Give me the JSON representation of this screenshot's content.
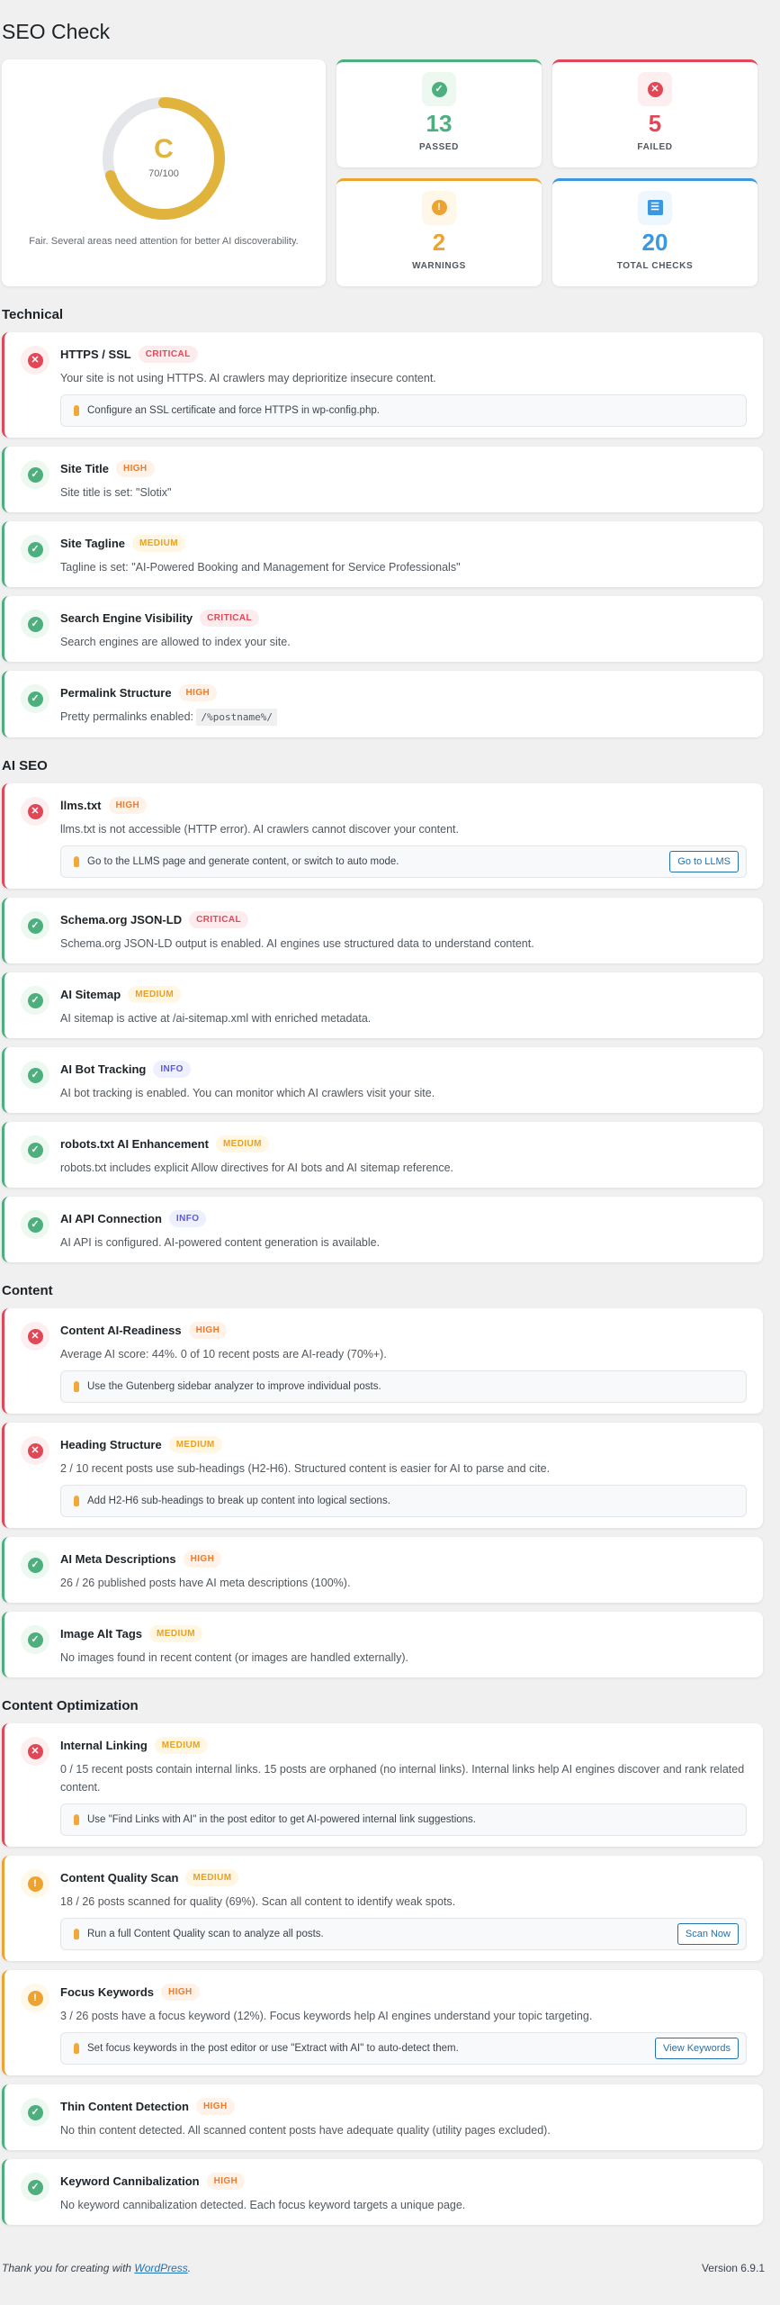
{
  "page_title": "SEO Check",
  "score": {
    "grade": "C",
    "score_text": "70/100",
    "value": 70,
    "max": 100,
    "message": "Fair. Several areas need attention for better AI discoverability.",
    "color": "#e0b43c"
  },
  "stats": [
    {
      "icon": "check-circle-icon",
      "value": "13",
      "label": "PASSED",
      "color": "#4caf7d",
      "bg": "#edf8f1"
    },
    {
      "icon": "x-circle-icon",
      "value": "5",
      "label": "FAILED",
      "color": "#e04857",
      "bg": "#fdeef0"
    },
    {
      "icon": "exclamation-circle-icon",
      "value": "2",
      "label": "WARNINGS",
      "color": "#eca331",
      "bg": "#fff8e8"
    },
    {
      "icon": "list-icon",
      "value": "20",
      "label": "TOTAL CHECKS",
      "color": "#3c97e0",
      "bg": "#eef6fe"
    }
  ],
  "sections": [
    {
      "title": "Technical",
      "checks": [
        {
          "status": "fail",
          "title": "HTTPS / SSL",
          "severity": "CRITICAL",
          "desc": "Your site is not using HTTPS. AI crawlers may deprioritize insecure content.",
          "hint": "Configure an SSL certificate and force HTTPS in wp-config.php."
        },
        {
          "status": "pass",
          "title": "Site Title",
          "severity": "HIGH",
          "desc": "Site title is set: \"Slotix\""
        },
        {
          "status": "pass",
          "title": "Site Tagline",
          "severity": "MEDIUM",
          "desc": "Tagline is set: \"AI-Powered Booking and Management for Service Professionals\""
        },
        {
          "status": "pass",
          "title": "Search Engine Visibility",
          "severity": "CRITICAL",
          "desc": "Search engines are allowed to index your site."
        },
        {
          "status": "pass",
          "title": "Permalink Structure",
          "severity": "HIGH",
          "desc": "Pretty permalinks enabled:",
          "code": "/%postname%/"
        }
      ]
    },
    {
      "title": "AI SEO",
      "checks": [
        {
          "status": "fail",
          "title": "llms.txt",
          "severity": "HIGH",
          "desc": "llms.txt is not accessible (HTTP error). AI crawlers cannot discover your content.",
          "hint": "Go to the LLMS page and generate content, or switch to auto mode.",
          "button": "Go to LLMS"
        },
        {
          "status": "pass",
          "title": "Schema.org JSON-LD",
          "severity": "CRITICAL",
          "desc": "Schema.org JSON-LD output is enabled. AI engines use structured data to understand content."
        },
        {
          "status": "pass",
          "title": "AI Sitemap",
          "severity": "MEDIUM",
          "desc": "AI sitemap is active at /ai-sitemap.xml with enriched metadata."
        },
        {
          "status": "pass",
          "title": "AI Bot Tracking",
          "severity": "INFO",
          "desc": "AI bot tracking is enabled. You can monitor which AI crawlers visit your site."
        },
        {
          "status": "pass",
          "title": "robots.txt AI Enhancement",
          "severity": "MEDIUM",
          "desc": "robots.txt includes explicit Allow directives for AI bots and AI sitemap reference."
        },
        {
          "status": "pass",
          "title": "AI API Connection",
          "severity": "INFO",
          "desc": "AI API is configured. AI-powered content generation is available."
        }
      ]
    },
    {
      "title": "Content",
      "checks": [
        {
          "status": "fail",
          "title": "Content AI-Readiness",
          "severity": "HIGH",
          "desc": "Average AI score: 44%. 0 of 10 recent posts are AI-ready (70%+).",
          "hint": "Use the Gutenberg sidebar analyzer to improve individual posts."
        },
        {
          "status": "fail",
          "title": "Heading Structure",
          "severity": "MEDIUM",
          "desc": "2 / 10 recent posts use sub-headings (H2-H6). Structured content is easier for AI to parse and cite.",
          "hint": "Add H2-H6 sub-headings to break up content into logical sections."
        },
        {
          "status": "pass",
          "title": "AI Meta Descriptions",
          "severity": "HIGH",
          "desc": "26 / 26 published posts have AI meta descriptions (100%)."
        },
        {
          "status": "pass",
          "title": "Image Alt Tags",
          "severity": "MEDIUM",
          "desc": "No images found in recent content (or images are handled externally)."
        }
      ]
    },
    {
      "title": "Content Optimization",
      "checks": [
        {
          "status": "fail",
          "title": "Internal Linking",
          "severity": "MEDIUM",
          "desc": "0 / 15 recent posts contain internal links. 15 posts are orphaned (no internal links). Internal links help AI engines discover and rank related content.",
          "hint": "Use \"Find Links with AI\" in the post editor to get AI-powered internal link suggestions."
        },
        {
          "status": "warn",
          "title": "Content Quality Scan",
          "severity": "MEDIUM",
          "desc": "18 / 26 posts scanned for quality (69%). Scan all content to identify weak spots.",
          "hint": "Run a full Content Quality scan to analyze all posts.",
          "button": "Scan Now"
        },
        {
          "status": "warn",
          "title": "Focus Keywords",
          "severity": "HIGH",
          "desc": "3 / 26 posts have a focus keyword (12%). Focus keywords help AI engines understand your topic targeting.",
          "hint": "Set focus keywords in the post editor or use \"Extract with AI\" to auto-detect them.",
          "button": "View Keywords"
        },
        {
          "status": "pass",
          "title": "Thin Content Detection",
          "severity": "HIGH",
          "desc": "No thin content detected. All scanned content posts have adequate quality (utility pages excluded)."
        },
        {
          "status": "pass",
          "title": "Keyword Cannibalization",
          "severity": "HIGH",
          "desc": "No keyword cannibalization detected. Each focus keyword targets a unique page."
        }
      ]
    }
  ],
  "footer": {
    "thanks_prefix": "Thank you for creating with ",
    "link": "WordPress",
    "suffix": ".",
    "version": "Version 6.9.1"
  },
  "colors": {
    "pass": "#4caf7d",
    "fail": "#e04857",
    "warn": "#eca331",
    "link": "#2271b1"
  }
}
